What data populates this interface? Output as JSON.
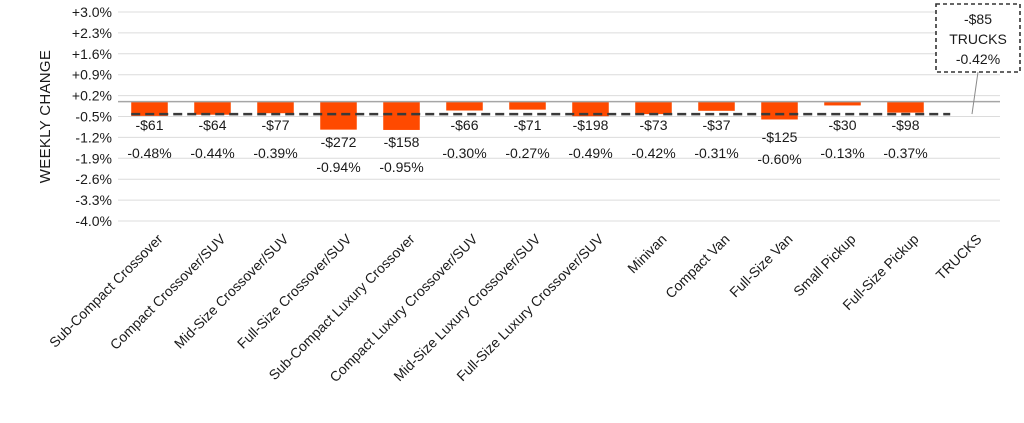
{
  "chart_data": {
    "type": "bar",
    "ylabel": "WEEKLY CHANGE",
    "ylim": [
      -4.0,
      3.0
    ],
    "y_ticks": [
      "+3.0%",
      "+2.3%",
      "+1.6%",
      "+0.9%",
      "+0.2%",
      "-0.5%",
      "-1.2%",
      "-1.9%",
      "-2.6%",
      "-3.3%",
      "-4.0%"
    ],
    "y_tick_values": [
      3.0,
      2.3,
      1.6,
      0.9,
      0.2,
      -0.5,
      -1.2,
      -1.9,
      -2.6,
      -3.3,
      -4.0
    ],
    "grid": true,
    "bar_color": "#ff4a00",
    "reference_line": {
      "value": -0.42,
      "style": "dashed",
      "color": "#3a3a3a"
    },
    "categories": [
      "Sub-Compact Crossover",
      "Compact Crossover/SUV",
      "Mid-Size Crossover/SUV",
      "Full-Size Crossover/SUV",
      "Sub-Compact Luxury Crossover",
      "Compact Luxury Crossover/SUV",
      "Mid-Size Luxury Crossover/SUV",
      "Full-Size Luxury Crossover/SUV",
      "Minivan",
      "Compact Van",
      "Full-Size Van",
      "Small Pickup",
      "Full-Size Pickup",
      "TRUCKS"
    ],
    "values": [
      -0.48,
      -0.44,
      -0.39,
      -0.94,
      -0.95,
      -0.3,
      -0.27,
      -0.49,
      -0.42,
      -0.31,
      -0.6,
      -0.13,
      -0.37,
      null
    ],
    "dollar_labels": [
      "-$61",
      "-$64",
      "-$77",
      "-$272",
      "-$158",
      "-$66",
      "-$71",
      "-$198",
      "-$73",
      "-$37",
      "-$125",
      "-$30",
      "-$98",
      null
    ],
    "pct_labels": [
      "-0.48%",
      "-0.44%",
      "-0.39%",
      "-0.94%",
      "-0.95%",
      "-0.30%",
      "-0.27%",
      "-0.49%",
      "-0.42%",
      "-0.31%",
      "-0.60%",
      "-0.13%",
      "-0.37%",
      null
    ],
    "callout": {
      "line1": "-$85",
      "line2": "TRUCKS",
      "line3": "-0.42%"
    }
  }
}
